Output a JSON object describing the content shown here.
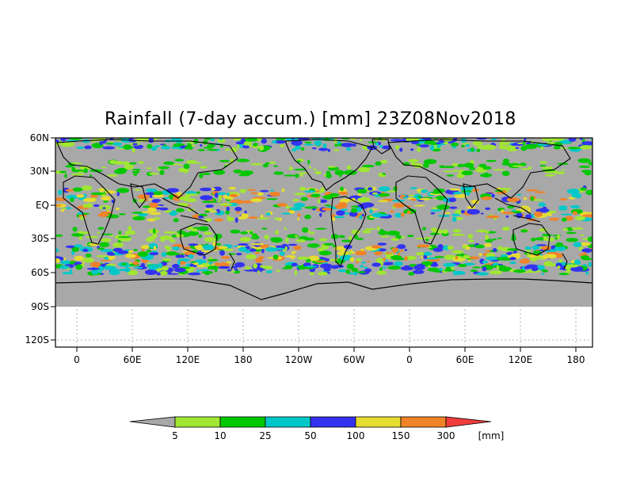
{
  "title": "Rainfall (7-day accum.) [mm] 23Z08Nov2018",
  "map": {
    "lat_labels": [
      "60N",
      "30N",
      "EQ",
      "30S",
      "60S",
      "90S",
      "120S"
    ],
    "lon_labels": [
      "0",
      "60E",
      "120E",
      "180",
      "120W",
      "60W",
      "0",
      "60E",
      "120E",
      "180"
    ],
    "land_color": "#a8a8a8",
    "data_extent": {
      "lat_top": "60N",
      "lat_bottom": "90S"
    }
  },
  "legend": {
    "unit": "[mm]",
    "labels": [
      "5",
      "10",
      "25",
      "50",
      "100",
      "150",
      "300"
    ],
    "colors": [
      "#a8a8a8",
      "#a0e632",
      "#00c800",
      "#00c8c8",
      "#3232f0",
      "#e6dc32",
      "#f08228",
      "#f03c3c"
    ]
  }
}
